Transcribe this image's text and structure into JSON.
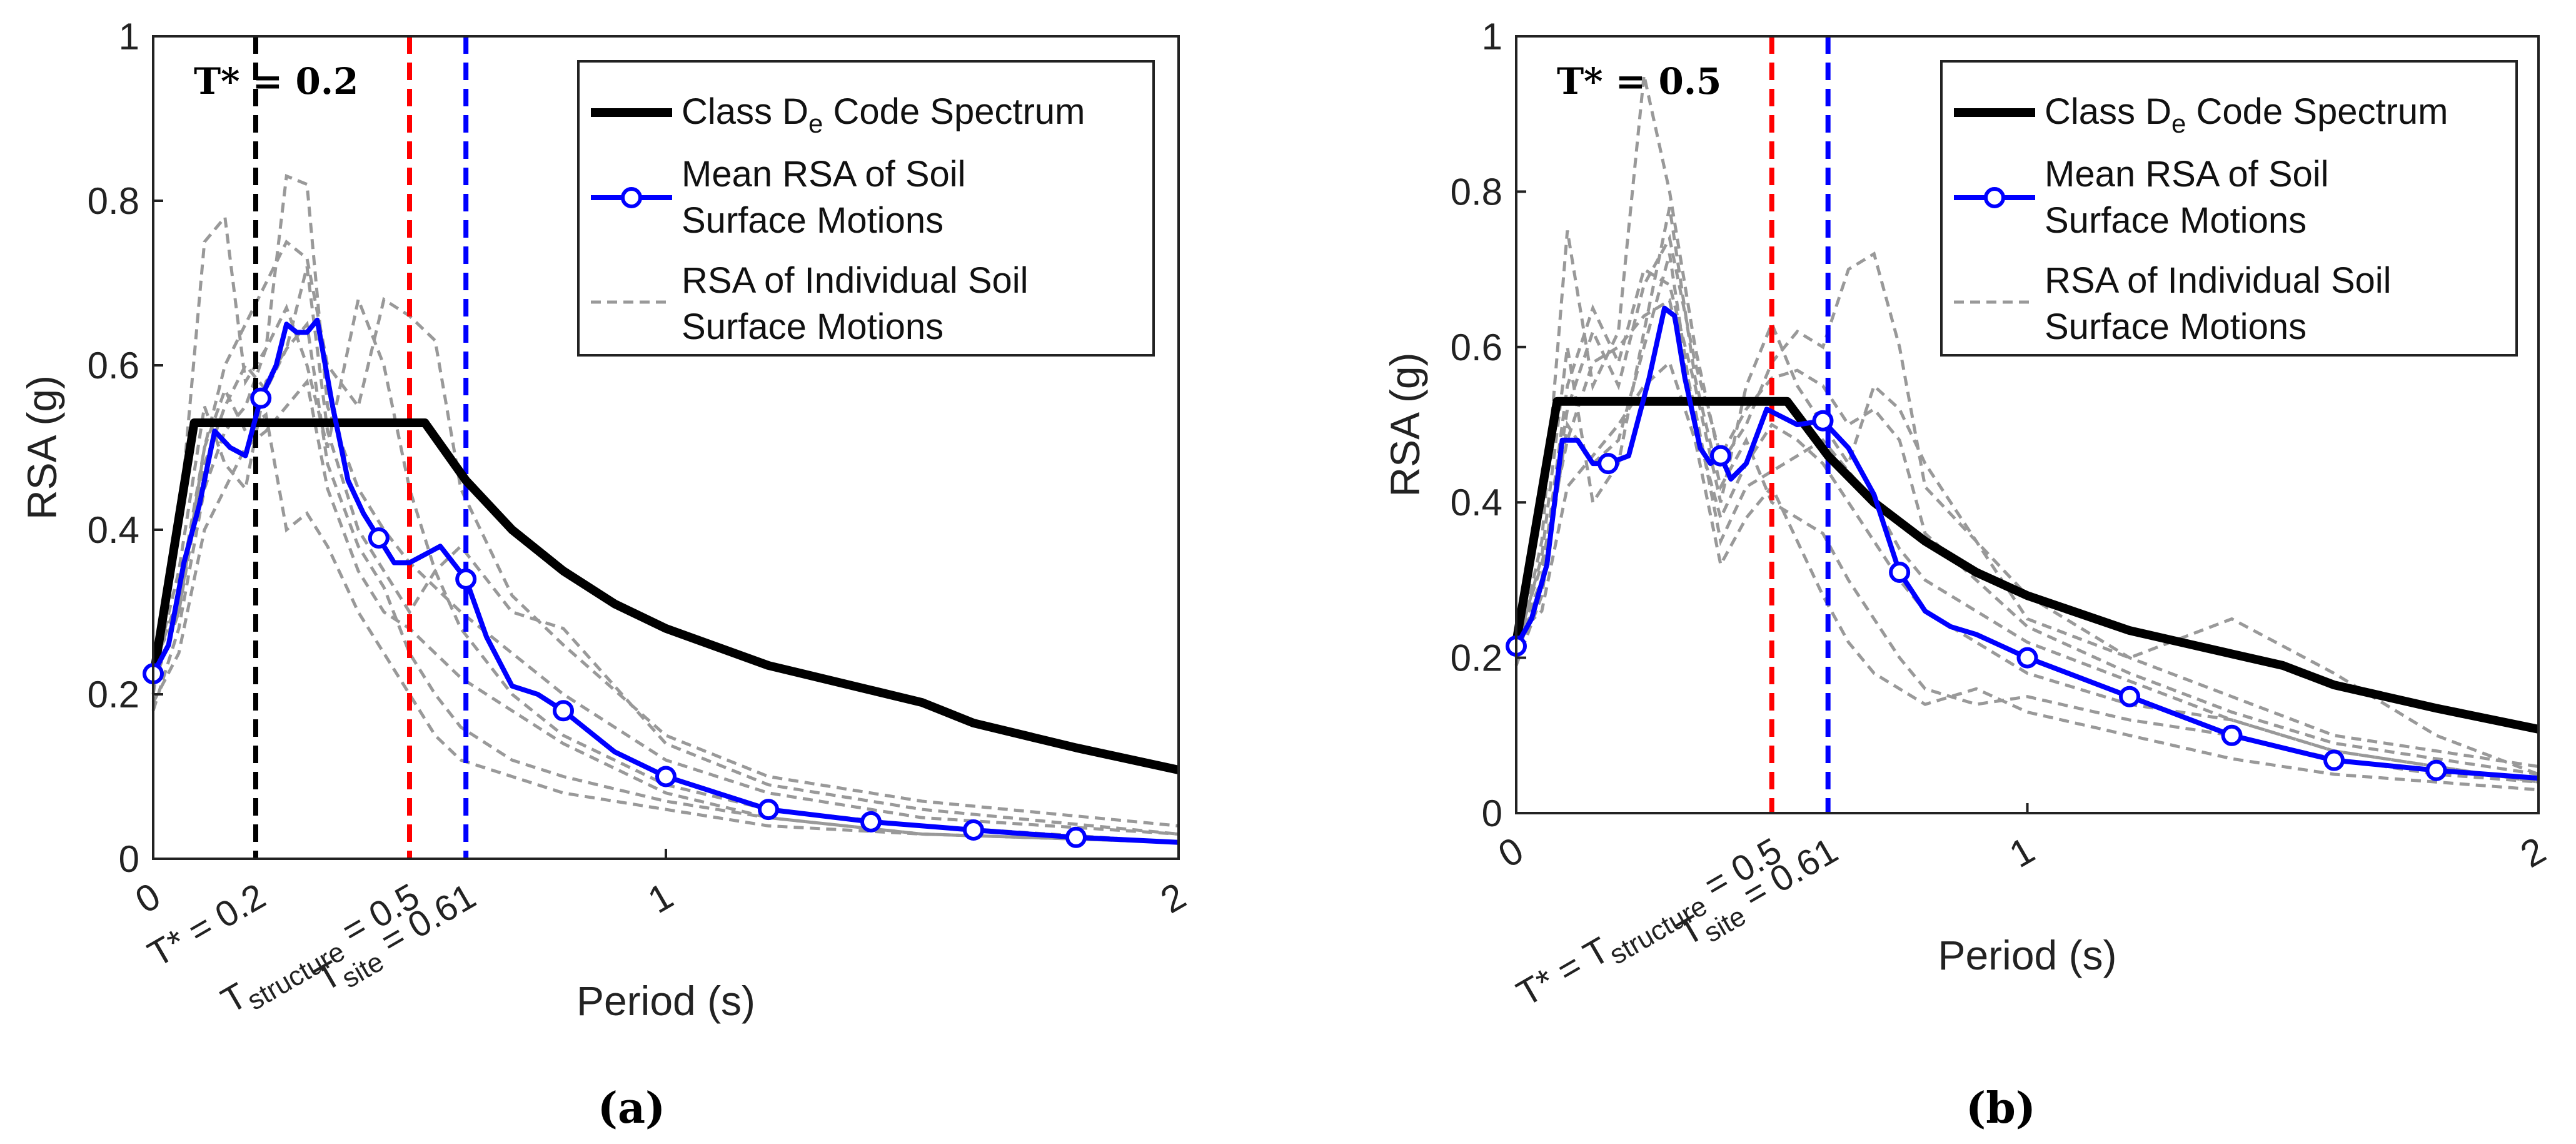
{
  "chart_data": [
    {
      "type": "line",
      "panel_caption": "(a)",
      "xlabel": "Period (s)",
      "ylabel": "RSA (g)",
      "xlim": [
        0,
        2
      ],
      "ylim": [
        0,
        1
      ],
      "x_ticks": [
        {
          "v": 0,
          "label": "0"
        },
        {
          "v": 1,
          "label": "1"
        },
        {
          "v": 2,
          "label": "2"
        }
      ],
      "y_ticks": [
        {
          "v": 0,
          "label": "0"
        },
        {
          "v": 0.2,
          "label": "0.2"
        },
        {
          "v": 0.4,
          "label": "0.4"
        },
        {
          "v": 0.6,
          "label": "0.6"
        },
        {
          "v": 0.8,
          "label": "0.8"
        },
        {
          "v": 1,
          "label": "1"
        }
      ],
      "tstar_text": "T* = 0.2",
      "legend": {
        "code": [
          "Class D",
          "e",
          " Code Spectrum"
        ],
        "mean": [
          "Mean RSA of Soil",
          "Surface Motions"
        ],
        "individual": [
          "RSA of Individual Soil",
          "Surface Motions"
        ]
      },
      "vlines": [
        {
          "x": 0.2,
          "color": "#000000"
        },
        {
          "x": 0.5,
          "color": "#ff0000"
        },
        {
          "x": 0.61,
          "color": "#0000ff"
        }
      ],
      "rotated_labels": [
        {
          "x": 0.2,
          "parts": [
            [
              "T* = 0.2",
              false
            ]
          ]
        },
        {
          "x": 0.5,
          "parts": [
            [
              "T",
              false
            ],
            [
              "structure",
              true
            ],
            [
              " = 0.5",
              false
            ]
          ]
        },
        {
          "x": 0.61,
          "parts": [
            [
              "T",
              false
            ],
            [
              "site",
              true
            ],
            [
              " = 0.61",
              false
            ]
          ]
        }
      ],
      "series": [
        {
          "name": "Class De Code Spectrum",
          "color": "#000000",
          "x": [
            0,
            0.08,
            0.53,
            0.61,
            0.7,
            0.8,
            0.9,
            1.0,
            1.2,
            1.4,
            1.5,
            1.6,
            1.8,
            2.0
          ],
          "y": [
            0.22,
            0.53,
            0.53,
            0.46,
            0.4,
            0.35,
            0.31,
            0.28,
            0.235,
            0.205,
            0.19,
            0.165,
            0.135,
            0.108
          ]
        },
        {
          "name": "Mean RSA of Soil Surface Motions",
          "color": "#0000ff",
          "x": [
            0,
            0.03,
            0.06,
            0.09,
            0.12,
            0.15,
            0.18,
            0.21,
            0.24,
            0.26,
            0.28,
            0.3,
            0.32,
            0.35,
            0.38,
            0.41,
            0.44,
            0.47,
            0.5,
            0.53,
            0.56,
            0.61,
            0.65,
            0.7,
            0.75,
            0.8,
            0.9,
            1.0,
            1.2,
            1.4,
            1.6,
            1.8,
            2.0
          ],
          "y": [
            0.225,
            0.26,
            0.36,
            0.43,
            0.52,
            0.5,
            0.49,
            0.56,
            0.6,
            0.65,
            0.64,
            0.64,
            0.655,
            0.55,
            0.46,
            0.42,
            0.39,
            0.36,
            0.36,
            0.37,
            0.38,
            0.34,
            0.27,
            0.21,
            0.2,
            0.18,
            0.13,
            0.1,
            0.06,
            0.045,
            0.035,
            0.026,
            0.02
          ],
          "markers": [
            0,
            7,
            16,
            21,
            25,
            27,
            28,
            29,
            30,
            31
          ]
        },
        {
          "name": "RSA of Individual Soil Surface Motions",
          "color": "#999999",
          "individual": true,
          "x": [
            0,
            0.05,
            0.1,
            0.14,
            0.18,
            0.22,
            0.26,
            0.3,
            0.34,
            0.4,
            0.45,
            0.5,
            0.55,
            0.6,
            0.7,
            0.8,
            1.0,
            1.2,
            1.5,
            2.0
          ],
          "ys": [
            [
              0.2,
              0.4,
              0.75,
              0.78,
              0.58,
              0.62,
              0.83,
              0.82,
              0.55,
              0.45,
              0.4,
              0.36,
              0.33,
              0.3,
              0.25,
              0.2,
              0.12,
              0.08,
              0.05,
              0.03
            ],
            [
              0.24,
              0.3,
              0.5,
              0.6,
              0.65,
              0.7,
              0.75,
              0.73,
              0.6,
              0.55,
              0.68,
              0.66,
              0.63,
              0.45,
              0.32,
              0.26,
              0.15,
              0.1,
              0.07,
              0.04
            ],
            [
              0.18,
              0.28,
              0.45,
              0.52,
              0.55,
              0.62,
              0.67,
              0.6,
              0.5,
              0.68,
              0.6,
              0.45,
              0.35,
              0.28,
              0.2,
              0.15,
              0.09,
              0.06,
              0.04,
              0.02
            ],
            [
              0.22,
              0.35,
              0.55,
              0.48,
              0.45,
              0.58,
              0.62,
              0.72,
              0.52,
              0.4,
              0.35,
              0.3,
              0.35,
              0.38,
              0.3,
              0.28,
              0.14,
              0.09,
              0.06,
              0.03
            ],
            [
              0.19,
              0.25,
              0.4,
              0.45,
              0.5,
              0.52,
              0.55,
              0.58,
              0.45,
              0.35,
              0.3,
              0.28,
              0.25,
              0.22,
              0.18,
              0.14,
              0.08,
              0.05,
              0.03,
              0.02
            ],
            [
              0.21,
              0.3,
              0.48,
              0.55,
              0.6,
              0.57,
              0.62,
              0.65,
              0.48,
              0.38,
              0.33,
              0.25,
              0.2,
              0.16,
              0.12,
              0.1,
              0.07,
              0.05,
              0.03,
              0.02
            ],
            [
              0.23,
              0.32,
              0.5,
              0.57,
              0.52,
              0.54,
              0.4,
              0.42,
              0.38,
              0.3,
              0.25,
              0.2,
              0.15,
              0.12,
              0.1,
              0.08,
              0.06,
              0.04,
              0.03,
              0.02
            ]
          ]
        }
      ]
    },
    {
      "type": "line",
      "panel_caption": "(b)",
      "xlabel": "Period (s)",
      "ylabel": "RSA (g)",
      "xlim": [
        0,
        2
      ],
      "ylim": [
        0,
        1
      ],
      "x_ticks": [
        {
          "v": 0,
          "label": "0"
        },
        {
          "v": 1,
          "label": "1"
        },
        {
          "v": 2,
          "label": "2"
        }
      ],
      "y_ticks": [
        {
          "v": 0,
          "label": "0"
        },
        {
          "v": 0.2,
          "label": "0.2"
        },
        {
          "v": 0.4,
          "label": "0.4"
        },
        {
          "v": 0.6,
          "label": "0.6"
        },
        {
          "v": 0.8,
          "label": "0.8"
        },
        {
          "v": 1,
          "label": "1"
        }
      ],
      "tstar_text": "T* = 0.5",
      "legend": {
        "code": [
          "Class D",
          "e",
          " Code Spectrum"
        ],
        "mean": [
          "Mean RSA of Soil",
          "Surface Motions"
        ],
        "individual": [
          "RSA of Individual Soil",
          "Surface Motions"
        ]
      },
      "vlines": [
        {
          "x": 0.5,
          "color": "#ff0000"
        },
        {
          "x": 0.61,
          "color": "#0000ff"
        }
      ],
      "rotated_labels": [
        {
          "x": 0.5,
          "parts": [
            [
              "T* = T",
              false
            ],
            [
              "structure",
              true
            ],
            [
              " = 0.5",
              false
            ]
          ]
        },
        {
          "x": 0.61,
          "parts": [
            [
              "T",
              false
            ],
            [
              "site",
              true
            ],
            [
              " = 0.61",
              false
            ]
          ]
        }
      ],
      "series": [
        {
          "name": "Class De Code Spectrum",
          "color": "#000000",
          "x": [
            0,
            0.08,
            0.53,
            0.61,
            0.7,
            0.8,
            0.9,
            1.0,
            1.2,
            1.4,
            1.5,
            1.6,
            1.8,
            2.0
          ],
          "y": [
            0.22,
            0.53,
            0.53,
            0.46,
            0.4,
            0.35,
            0.31,
            0.28,
            0.235,
            0.205,
            0.19,
            0.165,
            0.135,
            0.108
          ]
        },
        {
          "name": "Mean RSA of Soil Surface Motions",
          "color": "#0000ff",
          "x": [
            0,
            0.03,
            0.06,
            0.09,
            0.12,
            0.15,
            0.18,
            0.22,
            0.26,
            0.29,
            0.31,
            0.33,
            0.36,
            0.38,
            0.4,
            0.42,
            0.45,
            0.49,
            0.52,
            0.55,
            0.6,
            0.65,
            0.7,
            0.75,
            0.8,
            0.85,
            0.9,
            1.0,
            1.2,
            1.4,
            1.6,
            1.8,
            2.0
          ],
          "y": [
            0.215,
            0.25,
            0.32,
            0.48,
            0.48,
            0.45,
            0.45,
            0.46,
            0.56,
            0.65,
            0.64,
            0.56,
            0.47,
            0.45,
            0.46,
            0.43,
            0.45,
            0.52,
            0.51,
            0.5,
            0.505,
            0.47,
            0.41,
            0.31,
            0.26,
            0.24,
            0.23,
            0.2,
            0.15,
            0.1,
            0.068,
            0.055,
            0.045
          ],
          "markers": [
            0,
            6,
            14,
            20,
            23,
            27,
            28,
            29,
            30,
            31
          ]
        },
        {
          "name": "RSA of Individual Soil Surface Motions",
          "color": "#999999",
          "individual": true,
          "x": [
            0,
            0.05,
            0.1,
            0.15,
            0.2,
            0.25,
            0.3,
            0.35,
            0.4,
            0.45,
            0.5,
            0.55,
            0.6,
            0.65,
            0.7,
            0.75,
            0.8,
            0.9,
            1.0,
            1.2,
            1.4,
            1.6,
            1.8,
            2.0
          ],
          "ys": [
            [
              0.2,
              0.35,
              0.75,
              0.55,
              0.62,
              0.95,
              0.8,
              0.6,
              0.45,
              0.5,
              0.58,
              0.62,
              0.6,
              0.7,
              0.72,
              0.6,
              0.42,
              0.35,
              0.28,
              0.2,
              0.15,
              0.1,
              0.08,
              0.06
            ],
            [
              0.22,
              0.3,
              0.55,
              0.65,
              0.58,
              0.7,
              0.68,
              0.55,
              0.4,
              0.55,
              0.63,
              0.55,
              0.5,
              0.45,
              0.55,
              0.52,
              0.45,
              0.35,
              0.25,
              0.2,
              0.25,
              0.18,
              0.1,
              0.05
            ],
            [
              0.19,
              0.28,
              0.5,
              0.45,
              0.48,
              0.6,
              0.72,
              0.5,
              0.38,
              0.45,
              0.5,
              0.48,
              0.45,
              0.4,
              0.35,
              0.3,
              0.26,
              0.22,
              0.18,
              0.14,
              0.12,
              0.08,
              0.06,
              0.04
            ],
            [
              0.21,
              0.33,
              0.6,
              0.4,
              0.45,
              0.62,
              0.78,
              0.56,
              0.42,
              0.48,
              0.4,
              0.38,
              0.36,
              0.3,
              0.25,
              0.2,
              0.16,
              0.14,
              0.15,
              0.12,
              0.1,
              0.07,
              0.05,
              0.04
            ],
            [
              0.23,
              0.26,
              0.42,
              0.46,
              0.5,
              0.55,
              0.58,
              0.48,
              0.32,
              0.38,
              0.42,
              0.35,
              0.28,
              0.22,
              0.18,
              0.16,
              0.14,
              0.16,
              0.13,
              0.1,
              0.07,
              0.05,
              0.04,
              0.03
            ],
            [
              0.2,
              0.3,
              0.52,
              0.62,
              0.55,
              0.68,
              0.74,
              0.58,
              0.46,
              0.52,
              0.56,
              0.57,
              0.55,
              0.5,
              0.52,
              0.48,
              0.36,
              0.3,
              0.24,
              0.18,
              0.13,
              0.09,
              0.07,
              0.05
            ],
            [
              0.22,
              0.32,
              0.48,
              0.58,
              0.6,
              0.64,
              0.66,
              0.52,
              0.35,
              0.42,
              0.44,
              0.46,
              0.48,
              0.44,
              0.4,
              0.34,
              0.3,
              0.26,
              0.22,
              0.17,
              0.12,
              0.08,
              0.06,
              0.04
            ]
          ]
        }
      ]
    }
  ]
}
